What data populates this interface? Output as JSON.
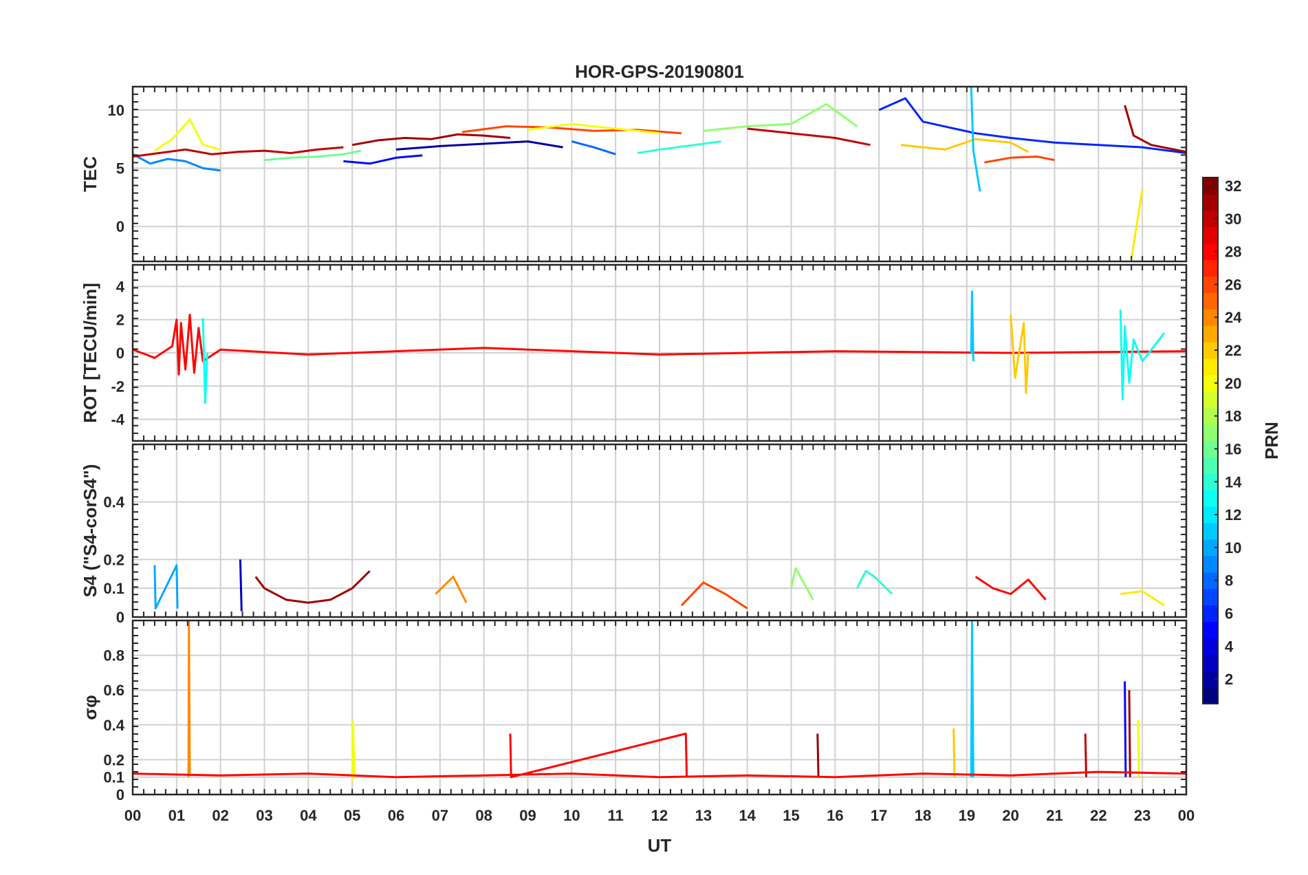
{
  "chart_data": {
    "type": "line",
    "title": "HOR-GPS-20190801",
    "xlabel": "UT",
    "x_ticks": [
      "00",
      "01",
      "02",
      "03",
      "04",
      "05",
      "06",
      "07",
      "08",
      "09",
      "10",
      "11",
      "12",
      "13",
      "14",
      "15",
      "16",
      "17",
      "18",
      "19",
      "20",
      "21",
      "22",
      "23",
      "00"
    ],
    "xlim": [
      0,
      24
    ],
    "grid": true,
    "colormap": "jet",
    "colorbar": {
      "label": "PRN",
      "range": [
        1,
        32
      ],
      "ticks": [
        2,
        4,
        6,
        8,
        10,
        12,
        14,
        16,
        18,
        20,
        22,
        24,
        26,
        28,
        30,
        32
      ]
    },
    "panels": [
      {
        "ylabel": "TEC",
        "ylim": [
          -3,
          12
        ],
        "y_ticks": [
          0,
          5,
          10
        ],
        "series": [
          {
            "prn": 9,
            "x": [
              0,
              0.4,
              0.8,
              1.2,
              1.6,
              2.0
            ],
            "y": [
              6.2,
              5.4,
              5.8,
              5.6,
              5.0,
              4.8
            ]
          },
          {
            "prn": 20,
            "x": [
              0.5,
              0.9,
              1.3,
              1.6,
              2.0
            ],
            "y": [
              6.5,
              7.5,
              9.2,
              7.0,
              6.6
            ]
          },
          {
            "prn": 30,
            "x": [
              0,
              0.6,
              1.2,
              1.8,
              2.4,
              3.0,
              3.6,
              4.2,
              4.8
            ],
            "y": [
              6.0,
              6.3,
              6.6,
              6.2,
              6.4,
              6.5,
              6.3,
              6.6,
              6.8
            ]
          },
          {
            "prn": 16,
            "x": [
              3.0,
              3.6,
              4.2,
              4.8,
              5.2
            ],
            "y": [
              5.7,
              5.9,
              6.0,
              6.2,
              6.5
            ]
          },
          {
            "prn": 5,
            "x": [
              4.8,
              5.4,
              6.0,
              6.6
            ],
            "y": [
              5.6,
              5.4,
              5.9,
              6.1
            ]
          },
          {
            "prn": 31,
            "x": [
              5.0,
              5.6,
              6.2,
              6.8,
              7.4,
              8.0,
              8.6
            ],
            "y": [
              7.0,
              7.4,
              7.6,
              7.5,
              7.9,
              7.8,
              7.6
            ]
          },
          {
            "prn": 2,
            "x": [
              6.0,
              7.0,
              8.0,
              9.0,
              9.8
            ],
            "y": [
              6.6,
              6.9,
              7.1,
              7.3,
              6.8
            ]
          },
          {
            "prn": 26,
            "x": [
              7.5,
              8.5,
              9.5,
              10.5,
              11.5,
              12.5
            ],
            "y": [
              8.1,
              8.6,
              8.5,
              8.2,
              8.3,
              8.0
            ]
          },
          {
            "prn": 20,
            "x": [
              9.0,
              10.0,
              11.0,
              12.0
            ],
            "y": [
              8.3,
              8.8,
              8.4,
              8.0
            ]
          },
          {
            "prn": 8,
            "x": [
              10.0,
              10.5,
              11.0
            ],
            "y": [
              7.3,
              6.8,
              6.2
            ]
          },
          {
            "prn": 14,
            "x": [
              11.5,
              12.0,
              12.8,
              13.4
            ],
            "y": [
              6.3,
              6.6,
              7.0,
              7.3
            ]
          },
          {
            "prn": 17,
            "x": [
              13.0,
              14.0,
              15.0,
              15.8,
              16.5
            ],
            "y": [
              8.2,
              8.6,
              8.8,
              10.5,
              8.6
            ]
          },
          {
            "prn": 30,
            "x": [
              14.0,
              15.0,
              16.0,
              16.8
            ],
            "y": [
              8.4,
              8.0,
              7.6,
              7.0
            ]
          },
          {
            "prn": 6,
            "x": [
              17.0,
              17.6,
              18.0,
              18.6,
              19.2,
              20.0,
              21.0,
              22.0,
              23.0,
              24.0
            ],
            "y": [
              10.0,
              11.0,
              9.0,
              8.5,
              8.0,
              7.6,
              7.2,
              7.0,
              6.8,
              6.3
            ]
          },
          {
            "prn": 22,
            "x": [
              17.5,
              18.5,
              19.2,
              20.0,
              20.4
            ],
            "y": [
              7.0,
              6.6,
              7.5,
              7.2,
              6.4
            ]
          },
          {
            "prn": 11,
            "x": [
              19.1,
              19.15,
              19.3
            ],
            "y": [
              12.0,
              6.5,
              3.0
            ]
          },
          {
            "prn": 26,
            "x": [
              19.4,
              20.0,
              20.6,
              21.0
            ],
            "y": [
              5.5,
              5.9,
              6.0,
              5.7
            ]
          },
          {
            "prn": 31,
            "x": [
              22.6,
              22.8,
              23.2,
              24.0
            ],
            "y": [
              10.4,
              7.8,
              7.0,
              6.4
            ]
          },
          {
            "prn": 21,
            "x": [
              22.75,
              23.0
            ],
            "y": [
              -2.8,
              3.2
            ]
          }
        ]
      },
      {
        "ylabel": "ROT [TECU/min]",
        "ylim": [
          -5.3,
          5.3
        ],
        "y_ticks": [
          -4,
          -2,
          0,
          2,
          4
        ],
        "series": [
          {
            "prn": 28,
            "x": [
              0,
              0.5,
              0.9,
              1.0,
              1.05,
              1.1,
              1.2,
              1.3,
              1.4,
              1.5,
              1.6,
              2.0,
              4.0,
              8.0,
              12.0,
              16.0,
              20.0,
              24.0
            ],
            "y": [
              0.2,
              -0.3,
              0.4,
              2.0,
              -1.3,
              1.8,
              -1.0,
              2.3,
              -1.2,
              1.5,
              -0.5,
              0.2,
              -0.1,
              0.3,
              -0.1,
              0.1,
              0.0,
              0.1
            ]
          },
          {
            "prn": 13,
            "x": [
              1.6,
              1.65,
              1.7
            ],
            "y": [
              2.1,
              -3.0,
              0.0
            ]
          },
          {
            "prn": 11,
            "x": [
              19.1,
              19.12,
              19.15
            ],
            "y": [
              0.0,
              3.7,
              -0.5
            ]
          },
          {
            "prn": 22,
            "x": [
              20.0,
              20.1,
              20.3,
              20.35,
              20.4
            ],
            "y": [
              2.3,
              -1.5,
              1.8,
              -2.4,
              0.0
            ]
          },
          {
            "prn": 13,
            "x": [
              22.5,
              22.55,
              22.6,
              22.7,
              22.8,
              23.0,
              23.5
            ],
            "y": [
              2.6,
              -2.8,
              1.6,
              -1.8,
              0.8,
              -0.5,
              1.2
            ]
          }
        ]
      },
      {
        "ylabel": "S4 (\"S4-corS4\")",
        "ylim": [
          0,
          0.6
        ],
        "y_ticks": [
          0,
          0.1,
          0.2,
          0.4
        ],
        "series": [
          {
            "prn": 10,
            "x": [
              0.5,
              0.52,
              1.0,
              1.02
            ],
            "y": [
              0.18,
              0.03,
              0.18,
              0.03
            ]
          },
          {
            "prn": 3,
            "x": [
              2.45,
              2.48
            ],
            "y": [
              0.2,
              0.02
            ]
          },
          {
            "prn": 31,
            "x": [
              2.8,
              3.0,
              3.5,
              4.0,
              4.5,
              5.0,
              5.4
            ],
            "y": [
              0.14,
              0.1,
              0.06,
              0.05,
              0.06,
              0.1,
              0.16
            ]
          },
          {
            "prn": 24,
            "x": [
              6.9,
              7.3,
              7.6
            ],
            "y": [
              0.08,
              0.14,
              0.05
            ]
          },
          {
            "prn": 26,
            "x": [
              12.5,
              13.0,
              13.5,
              14.0
            ],
            "y": [
              0.04,
              0.12,
              0.08,
              0.03
            ]
          },
          {
            "prn": 17,
            "x": [
              15.0,
              15.1,
              15.5
            ],
            "y": [
              0.1,
              0.17,
              0.06
            ]
          },
          {
            "prn": 14,
            "x": [
              16.5,
              16.7,
              16.9,
              17.3
            ],
            "y": [
              0.1,
              0.16,
              0.14,
              0.08
            ]
          },
          {
            "prn": 28,
            "x": [
              19.2,
              19.6,
              20.0,
              20.4,
              20.8
            ],
            "y": [
              0.14,
              0.1,
              0.08,
              0.13,
              0.06
            ]
          },
          {
            "prn": 21,
            "x": [
              22.5,
              23.0,
              23.5
            ],
            "y": [
              0.08,
              0.09,
              0.04
            ]
          }
        ]
      },
      {
        "ylabel": "σφ",
        "ylim": [
          0,
          1.0
        ],
        "y_ticks": [
          0,
          0.1,
          0.2,
          0.4,
          0.6,
          0.8
        ],
        "series": [
          {
            "prn": 24,
            "x": [
              1.27,
              1.28,
              1.3
            ],
            "y": [
              0.1,
              1.0,
              0.12
            ]
          },
          {
            "prn": 20,
            "x": [
              5.0,
              5.02,
              5.05
            ],
            "y": [
              0.08,
              0.42,
              0.1
            ]
          },
          {
            "prn": 28,
            "x": [
              8.6,
              8.62,
              12.6,
              12.62
            ],
            "y": [
              0.35,
              0.1,
              0.35,
              0.1
            ]
          },
          {
            "prn": 31,
            "x": [
              15.6,
              15.62
            ],
            "y": [
              0.35,
              0.1
            ]
          },
          {
            "prn": 22,
            "x": [
              18.7,
              18.72
            ],
            "y": [
              0.38,
              0.1
            ]
          },
          {
            "prn": 11,
            "x": [
              19.1,
              19.12,
              19.15
            ],
            "y": [
              0.1,
              1.0,
              0.1
            ]
          },
          {
            "prn": 30,
            "x": [
              21.7,
              21.72
            ],
            "y": [
              0.35,
              0.1
            ]
          },
          {
            "prn": 5,
            "x": [
              22.6,
              22.62
            ],
            "y": [
              0.65,
              0.1
            ]
          },
          {
            "prn": 31,
            "x": [
              22.7,
              22.72
            ],
            "y": [
              0.6,
              0.1
            ]
          },
          {
            "prn": 20,
            "x": [
              22.9,
              22.92
            ],
            "y": [
              0.43,
              0.1
            ]
          },
          {
            "prn": 28,
            "x": [
              0,
              2.0,
              4.0,
              6.0,
              8.0,
              10.0,
              12.0,
              14.0,
              16.0,
              18.0,
              20.0,
              22.0,
              24.0
            ],
            "y": [
              0.12,
              0.11,
              0.12,
              0.1,
              0.11,
              0.12,
              0.1,
              0.11,
              0.1,
              0.12,
              0.11,
              0.13,
              0.12
            ]
          }
        ]
      }
    ]
  }
}
